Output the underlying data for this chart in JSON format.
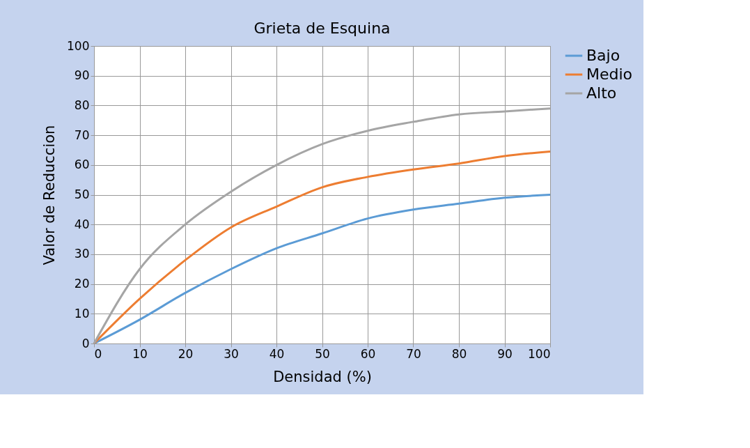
{
  "chart_data": {
    "type": "line",
    "title": "Grieta de Esquina",
    "xlabel": "Densidad (%)",
    "ylabel": "Valor de Reduccion",
    "x": [
      0,
      10,
      20,
      30,
      40,
      50,
      60,
      70,
      80,
      90,
      100
    ],
    "series": [
      {
        "name": "Bajo",
        "color": "#5b9bd5",
        "values": [
          0,
          8,
          17,
          25,
          32,
          37,
          42,
          45,
          47,
          49,
          50
        ]
      },
      {
        "name": "Medio",
        "color": "#ed7d31",
        "values": [
          0,
          15,
          28,
          39,
          46,
          52.5,
          56,
          58.5,
          60.5,
          63,
          64.5
        ]
      },
      {
        "name": "Alto",
        "color": "#a5a5a5",
        "values": [
          0,
          25,
          40,
          51,
          60,
          67,
          71.5,
          74.5,
          77,
          78,
          79
        ]
      }
    ],
    "xlim": [
      0,
      100
    ],
    "xticks": [
      0,
      10,
      20,
      30,
      40,
      50,
      60,
      70,
      80,
      90,
      100
    ],
    "ylim": [
      0,
      100
    ],
    "yticks": [
      0,
      10,
      20,
      30,
      40,
      50,
      60,
      70,
      80,
      90,
      100
    ],
    "grid": true,
    "legend": "right",
    "marker": "none",
    "line_style": "solid"
  }
}
